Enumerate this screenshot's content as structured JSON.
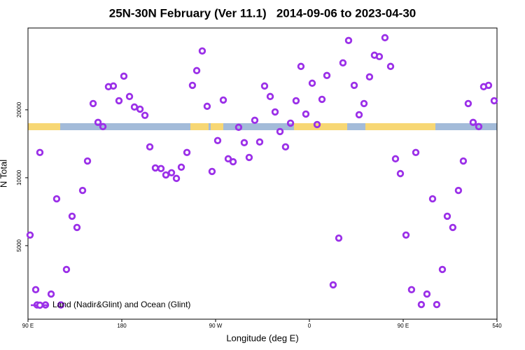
{
  "chart_data": {
    "type": "scatter",
    "title": "25N-30N February (Ver 11.1)   2014-09-06 to 2023-04-30",
    "xlabel": "Longitude (deg E)",
    "ylabel": "N Total",
    "x": [
      92.0,
      97.4,
      101.4,
      98.7,
      106.8,
      112.2,
      117.5,
      121.6,
      126.9,
      132.3,
      137.0,
      142.4,
      147.1,
      152.5,
      157.2,
      161.9,
      167.2,
      171.9,
      177.3,
      182.0,
      187.4,
      192.1,
      197.5,
      202.2,
      206.9,
      212.2,
      217.6,
      222.3,
      227.7,
      232.4,
      237.1,
      242.5,
      247.8,
      251.9,
      257.2,
      261.9,
      266.6,
      272.0,
      277.4,
      282.1,
      286.8,
      292.1,
      297.5,
      302.2,
      307.6,
      312.3,
      317.0,
      322.4,
      327.1,
      331.8,
      337.1,
      341.9,
      347.2,
      351.9,
      356.6,
      362.7,
      367.4,
      372.1,
      376.8,
      382.8,
      388.2,
      392.2,
      397.6,
      403.0,
      407.7,
      412.4,
      417.7,
      422.4,
      427.1,
      432.5,
      437.9,
      442.6,
      447.3,
      452.7,
      458.0,
      462.1,
      467.4,
      472.8,
      478.2,
      482.2,
      487.6,
      492.3,
      497.6,
      503.0,
      507.7,
      512.4,
      517.1,
      522.5,
      527.2,
      531.9,
      537.3
    ],
    "series": [
      {
        "name": "Land (Nadir&Glint) and Ocean (Glint)",
        "color": "#9b30e8",
        "values": [
          5570,
          3190,
          12940,
          2730,
          2730,
          3050,
          8060,
          2730,
          3920,
          6750,
          6020,
          8780,
          11860,
          21320,
          17590,
          16850,
          25320,
          25500,
          21940,
          28190,
          22910,
          20580,
          20140,
          18900,
          13700,
          11050,
          10980,
          10290,
          10520,
          9930,
          11140,
          12940,
          25680,
          29840,
          36460,
          20730,
          10660,
          14610,
          22100,
          12130,
          11770,
          16730,
          14300,
          12300,
          17970,
          14400,
          25500,
          22910,
          19570,
          16020,
          13700,
          17460,
          21940,
          31150,
          19150,
          26240,
          17210,
          22260,
          28390,
          3350,
          5400,
          32290,
          40580,
          25680,
          19020,
          21320,
          27990,
          34920,
          34440,
          41750,
          31150,
          12130,
          10430,
          5570,
          3190,
          12940,
          2740,
          3050,
          8060,
          2740,
          3920,
          6750,
          6020,
          8780,
          11860,
          21320,
          17590,
          16850,
          25320,
          25680,
          21940
        ]
      }
    ],
    "xlim": [
      90,
      540
    ],
    "xticks": [
      {
        "value": 90,
        "label": "90 E"
      },
      180,
      {
        "value": 270,
        "label": "90 W"
      },
      {
        "value": 360,
        "label": "0"
      },
      {
        "value": 450,
        "label": "90 E"
      },
      540
    ],
    "ylim": [
      2360,
      46100
    ],
    "yticks": [
      5000,
      10000,
      20000
    ],
    "ylog": true,
    "legend": "bottom-left"
  }
}
